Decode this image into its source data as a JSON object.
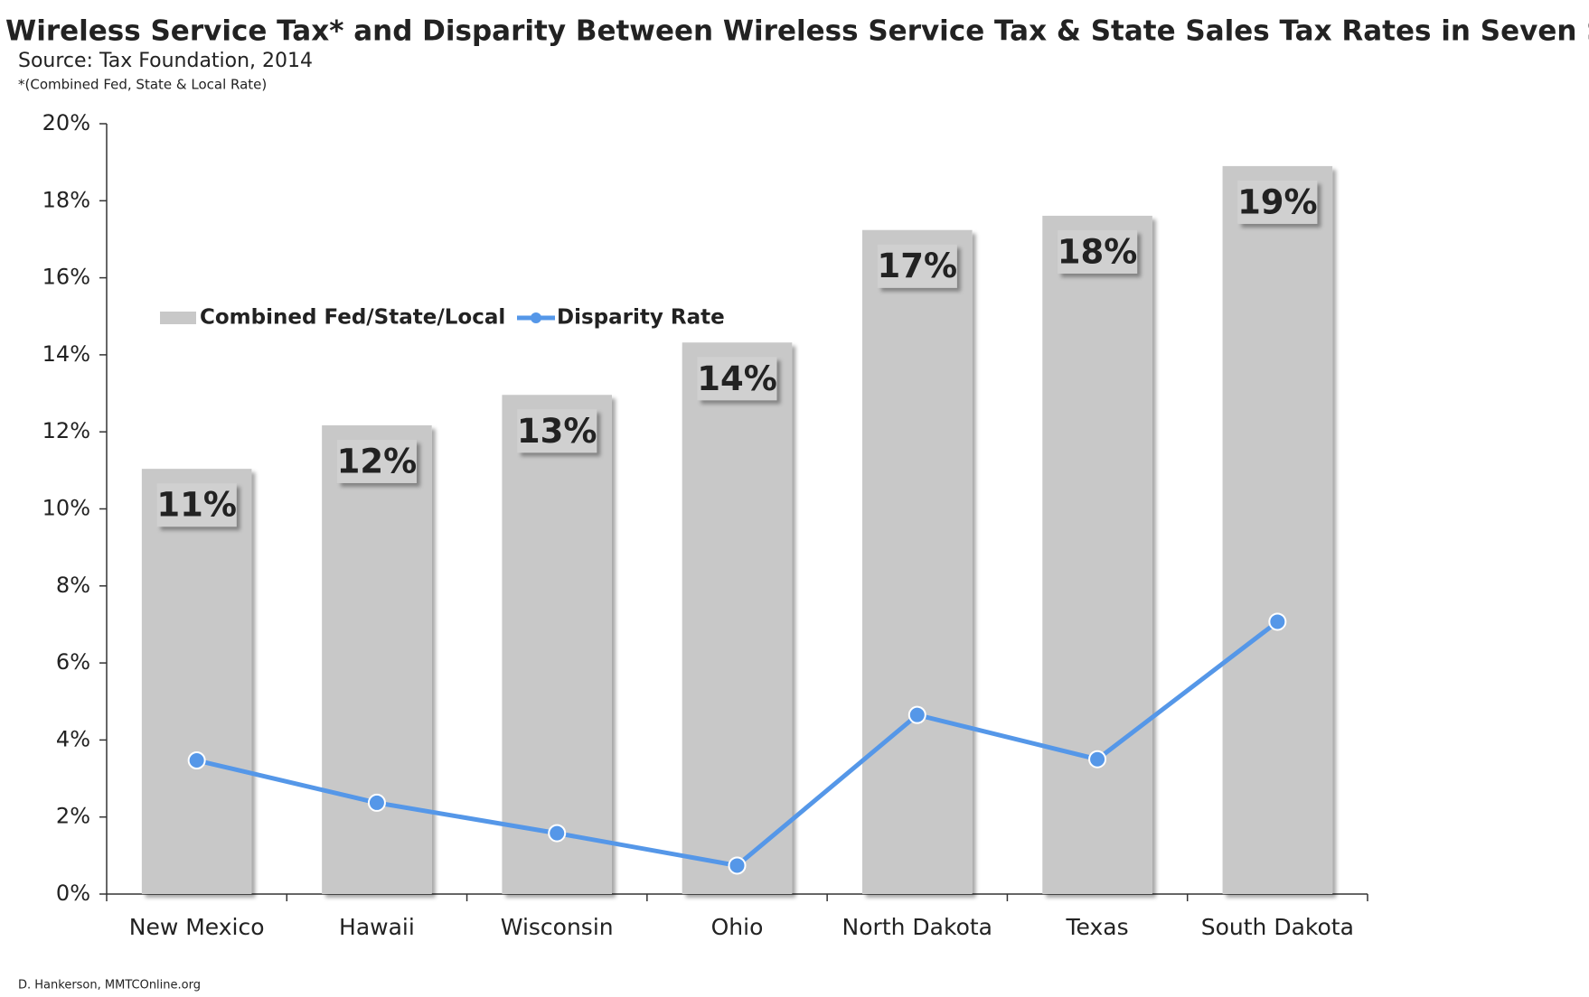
{
  "chart_data": {
    "type": "bar",
    "title": "Wireless Service Tax* and Disparity Between Wireless Service Tax & State Sales Tax Rates in Seven States",
    "subtitle": "Source: Tax Foundation, 2014",
    "note": "*(Combined Fed, State & Local Rate)",
    "footer": "D. Hankerson, MMTCOnline.org",
    "categories": [
      "New Mexico",
      "Hawaii",
      "Wisconsin",
      "Ohio",
      "North Dakota",
      "Texas",
      "South Dakota"
    ],
    "series": [
      {
        "name": "Combined Fed/State/Local",
        "type": "bar",
        "color": "#c8c8c8",
        "values": [
          11.04,
          12.17,
          12.96,
          14.32,
          17.24,
          17.61,
          18.9
        ],
        "value_labels": [
          "11%",
          "12%",
          "13%",
          "14%",
          "17%",
          "18%",
          "19%"
        ]
      },
      {
        "name": "Disparity Rate",
        "type": "line",
        "color": "#5597e8",
        "values": [
          3.47,
          2.37,
          1.58,
          0.74,
          4.65,
          3.5,
          7.07
        ]
      }
    ],
    "ylim": [
      0,
      20
    ],
    "yticks": [
      {
        "value": 0,
        "label": "0%"
      },
      {
        "value": 2,
        "label": "2%"
      },
      {
        "value": 4,
        "label": "4%"
      },
      {
        "value": 6,
        "label": "6%"
      },
      {
        "value": 8,
        "label": "8%"
      },
      {
        "value": 10,
        "label": "10%"
      },
      {
        "value": 12,
        "label": "12%"
      },
      {
        "value": 14,
        "label": "14%"
      },
      {
        "value": 16,
        "label": "16%"
      },
      {
        "value": 18,
        "label": "18%"
      },
      {
        "value": 20,
        "label": "20%"
      }
    ],
    "grid": false,
    "legend": "top-left"
  }
}
